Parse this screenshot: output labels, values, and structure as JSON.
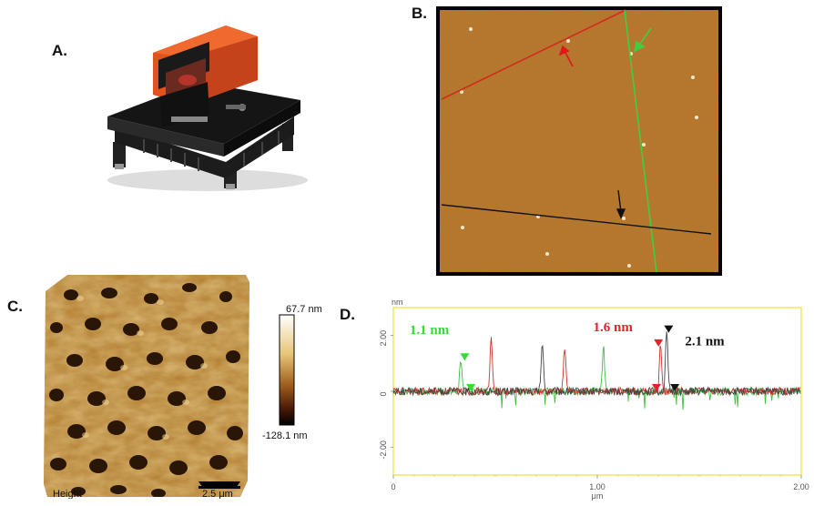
{
  "figure": {
    "panels": {
      "a": {
        "label": "A."
      },
      "b": {
        "label": "B."
      },
      "c": {
        "label": "C.",
        "colorbar_max": "67.7 nm",
        "colorbar_min": "-128.1 nm",
        "channel": "Height",
        "scalebar": "2.5 μm"
      },
      "d": {
        "label": "D."
      }
    }
  },
  "chart_data": {
    "type": "line",
    "xlabel": "μm",
    "ylabel": "nm",
    "xlim": [
      0,
      2.0
    ],
    "ylim": [
      -3.0,
      3.0
    ],
    "x_ticks": [
      "0",
      "1.00",
      "2.00"
    ],
    "y_ticks": [
      "2.00",
      "0",
      "-2.00"
    ],
    "annotations": [
      {
        "text": "1.1 nm",
        "color": "#33dd33"
      },
      {
        "text": "1.6 nm",
        "color": "#e8202c"
      },
      {
        "text": "2.1 nm",
        "color": "#111111"
      }
    ],
    "series": [
      {
        "color": "#3fbf3f",
        "peaks": [
          {
            "x": 0.33,
            "y": 1.1
          },
          {
            "x": 1.03,
            "y": 1.6
          }
        ]
      },
      {
        "color": "#cc3333",
        "peaks": [
          {
            "x": 0.48,
            "y": 1.9
          },
          {
            "x": 0.84,
            "y": 1.6
          },
          {
            "x": 1.31,
            "y": 1.6
          }
        ]
      },
      {
        "color": "#444444",
        "peaks": [
          {
            "x": 0.73,
            "y": 1.7
          },
          {
            "x": 1.34,
            "y": 2.1
          }
        ]
      }
    ],
    "markers": [
      {
        "x": 0.35,
        "y": 1.1,
        "color": "#33dd33"
      },
      {
        "x": 0.38,
        "y": 0.0,
        "color": "#33dd33"
      },
      {
        "x": 1.3,
        "y": 1.6,
        "color": "#e8202c"
      },
      {
        "x": 1.29,
        "y": 0.0,
        "color": "#e8202c"
      },
      {
        "x": 1.35,
        "y": 2.1,
        "color": "#111111"
      },
      {
        "x": 1.38,
        "y": 0.0,
        "color": "#111111"
      }
    ]
  }
}
